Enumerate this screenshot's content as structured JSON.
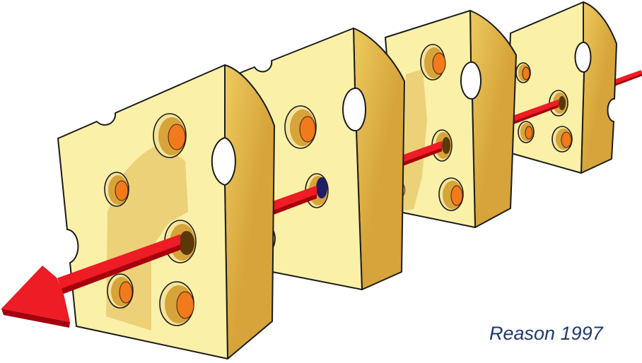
{
  "caption": "Reason 1997",
  "colors": {
    "cheese_face": "#FAF0A8",
    "cheese_side": "#D6A43A",
    "hole_interior": "#F07A1C",
    "arrow": "#EE1C24",
    "caption": "#1F3A6E"
  }
}
